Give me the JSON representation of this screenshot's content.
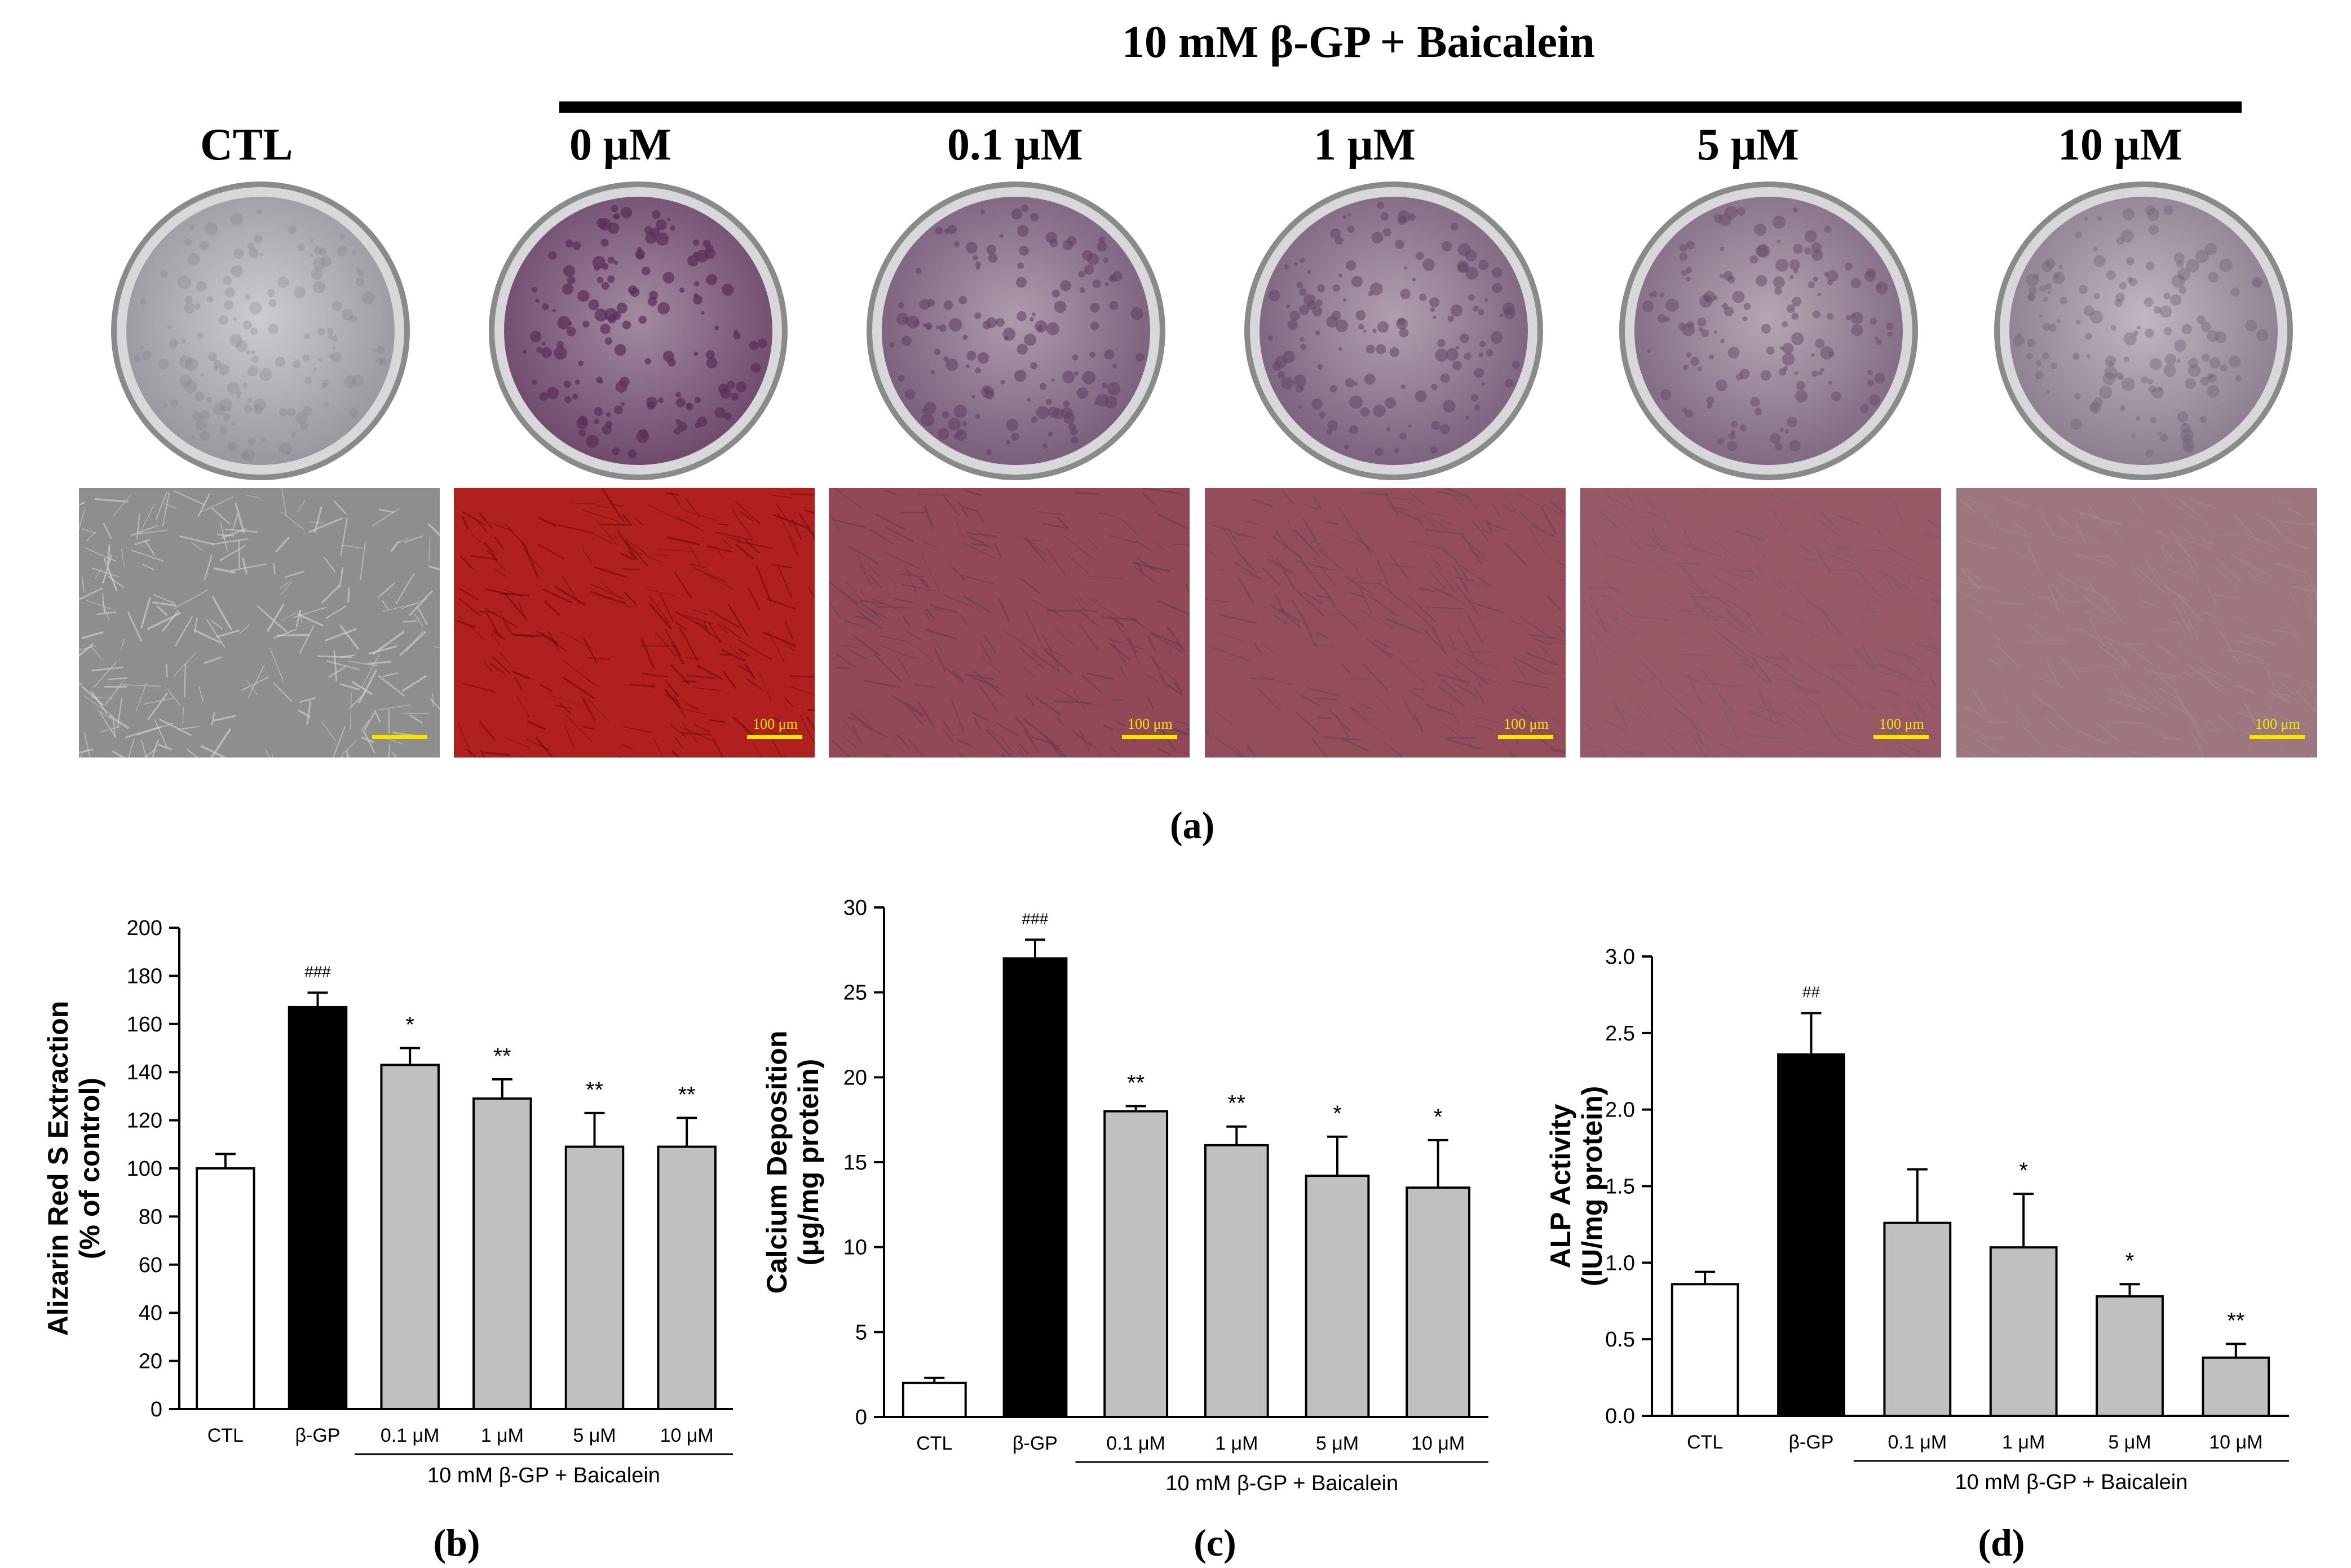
{
  "panel_a": {
    "group_header": "10 mM β-GP + Baicalein",
    "conditions": [
      {
        "label": "CTL",
        "stain_level": 0.05,
        "scale_label": ""
      },
      {
        "label": "0 μM",
        "stain_level": 1.0,
        "scale_label": "100 μm"
      },
      {
        "label": "0.1 μM",
        "stain_level": 0.75,
        "scale_label": "100 μm"
      },
      {
        "label": "1 μM",
        "stain_level": 0.7,
        "scale_label": "100 μm"
      },
      {
        "label": "5 μM",
        "stain_level": 0.6,
        "scale_label": "100 μm"
      },
      {
        "label": "10 μM",
        "stain_level": 0.35,
        "scale_label": "100 μm"
      }
    ],
    "letter": "(a)"
  },
  "chart_data": [
    {
      "type": "bar",
      "panel": "(b)",
      "ylabel_lines": [
        "Alizarin Red S Extraction",
        "(% of control)"
      ],
      "ylim": [
        0,
        200
      ],
      "yticks": [
        0,
        20,
        40,
        60,
        80,
        100,
        120,
        140,
        160,
        180,
        200
      ],
      "categories": [
        "CTL",
        "β-GP",
        "0.1 μM",
        "1 μM",
        "5 μM",
        "10 μM"
      ],
      "values": [
        100,
        167,
        143,
        129,
        109,
        109
      ],
      "errors": [
        6,
        6,
        7,
        8,
        14,
        12
      ],
      "significance": [
        "",
        "###",
        "*",
        "**",
        "**",
        "**"
      ],
      "group_label": "10 mM β-GP + Baicalein",
      "bar_colors": [
        "#ffffff",
        "#000000",
        "#c0c0c0",
        "#c0c0c0",
        "#c0c0c0",
        "#c0c0c0"
      ]
    },
    {
      "type": "bar",
      "panel": "(c)",
      "ylabel_lines": [
        "Calcium Deposition",
        "(μg/mg protein)"
      ],
      "ylim": [
        0,
        30
      ],
      "yticks": [
        0,
        5,
        10,
        15,
        20,
        25,
        30
      ],
      "categories": [
        "CTL",
        "β-GP",
        "0.1 μM",
        "1 μM",
        "5 μM",
        "10 μM"
      ],
      "values": [
        2.0,
        27.0,
        18.0,
        16.0,
        14.2,
        13.5
      ],
      "errors": [
        0.3,
        1.1,
        0.3,
        1.1,
        2.3,
        2.8
      ],
      "significance": [
        "",
        "###",
        "**",
        "**",
        "*",
        "*"
      ],
      "group_label": "10 mM β-GP + Baicalein",
      "bar_colors": [
        "#ffffff",
        "#000000",
        "#c0c0c0",
        "#c0c0c0",
        "#c0c0c0",
        "#c0c0c0"
      ]
    },
    {
      "type": "bar",
      "panel": "(d)",
      "ylabel_lines": [
        "ALP Activity",
        "(IU/mg protein)"
      ],
      "ylim": [
        0,
        3.0
      ],
      "yticks": [
        0.0,
        0.5,
        1.0,
        1.5,
        2.0,
        2.5,
        3.0
      ],
      "categories": [
        "CTL",
        "β-GP",
        "0.1 μM",
        "1 μM",
        "5 μM",
        "10 μM"
      ],
      "values": [
        0.86,
        2.36,
        1.26,
        1.1,
        0.78,
        0.38
      ],
      "errors": [
        0.08,
        0.27,
        0.35,
        0.35,
        0.08,
        0.09
      ],
      "significance": [
        "",
        "##",
        "",
        "*",
        "*",
        "**"
      ],
      "group_label": "10 mM β-GP + Baicalein",
      "bar_colors": [
        "#ffffff",
        "#000000",
        "#c0c0c0",
        "#c0c0c0",
        "#c0c0c0",
        "#c0c0c0"
      ]
    }
  ]
}
